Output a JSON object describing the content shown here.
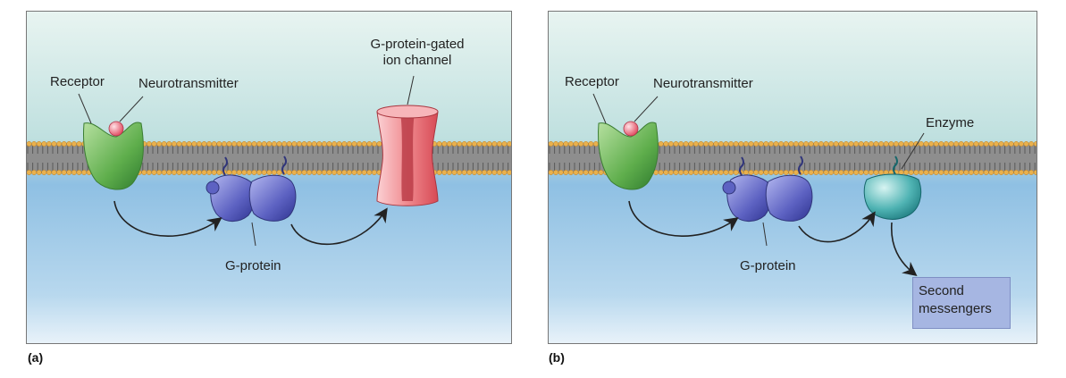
{
  "panels": [
    {
      "id": "a",
      "letter": "(a)",
      "labels": {
        "receptor": "Receptor",
        "neurotransmitter": "Neurotransmitter",
        "gprotein": "G-protein",
        "channel_line1": "G-protein-gated",
        "channel_line2": "ion channel"
      }
    },
    {
      "id": "b",
      "letter": "(b)",
      "labels": {
        "receptor": "Receptor",
        "neurotransmitter": "Neurotransmitter",
        "gprotein": "G-protein",
        "enzyme": "Enzyme",
        "second_line1": "Second",
        "second_line2": "messengers"
      }
    }
  ],
  "colors": {
    "extracellular_top": "#c9e4e2",
    "intracellular": "#9cc6e6",
    "receptor": "#6fb55a",
    "gprotein": "#6a6ec9",
    "ion_channel": "#f08a8f",
    "enzyme": "#4fb3b3",
    "lipid_head": "#e9b14e",
    "neurotransmitter": "#f0788a"
  }
}
